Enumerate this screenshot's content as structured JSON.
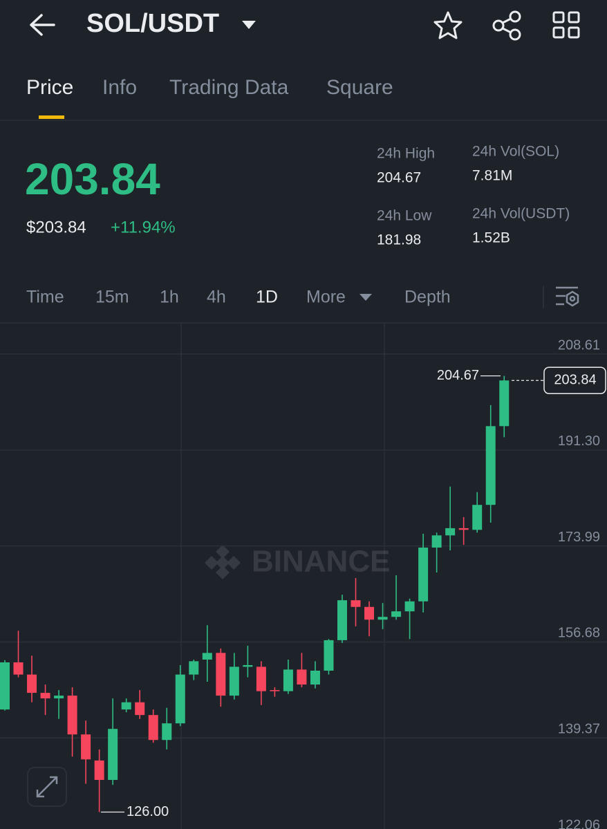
{
  "header": {
    "pair": "SOL/USDT"
  },
  "tabs": [
    "Price",
    "Info",
    "Trading Data",
    "Square"
  ],
  "price": {
    "last": "203.84",
    "fiat": "$203.84",
    "change": "+11.94%"
  },
  "stats": [
    {
      "label": "24h High",
      "value": "204.67"
    },
    {
      "label": "24h Vol(SOL)",
      "value": "7.81M"
    },
    {
      "label": "24h Low",
      "value": "181.98"
    },
    {
      "label": "24h Vol(USDT)",
      "value": "1.52B"
    }
  ],
  "intervals": [
    "Time",
    "15m",
    "1h",
    "4h",
    "1D",
    "More",
    "Depth"
  ],
  "chart_data": {
    "type": "candlestick",
    "watermark": "BINANCE",
    "up_color": "#2ebd85",
    "down_color": "#f6465d",
    "open": [
      144.5,
      153.0,
      150.8,
      147.5,
      146.5,
      147.0,
      140.0,
      135.3,
      131.8,
      144.5,
      145.8,
      143.5,
      139.0,
      142.0,
      150.8,
      153.5,
      154.7,
      147.0,
      152.2,
      152.2,
      148.0,
      147.8,
      151.7,
      149.0,
      151.5,
      157.0,
      164.2,
      163.0,
      160.7,
      161.2,
      162.2,
      164.0,
      173.7,
      175.9,
      177.2,
      176.9,
      181.4,
      195.6
    ],
    "high": [
      153.4,
      158.7,
      154.2,
      149.0,
      148.0,
      148.5,
      142.5,
      137.3,
      146.5,
      146.5,
      148.0,
      144.5,
      144.8,
      152.5,
      153.5,
      159.7,
      155.5,
      154.7,
      156.0,
      153.2,
      148.5,
      153.5,
      154.7,
      153.2,
      157.2,
      165.2,
      168.2,
      164.0,
      163.7,
      168.7,
      164.5,
      176.2,
      176.4,
      184.7,
      179.2,
      183.7,
      199.4,
      204.67
    ],
    "low": [
      144.3,
      150.3,
      145.8,
      143.5,
      142.8,
      136.0,
      131.1,
      126.0,
      130.9,
      144.0,
      142.8,
      138.5,
      137.3,
      141.5,
      149.8,
      149.5,
      145.0,
      146.3,
      150.3,
      145.3,
      146.8,
      147.3,
      148.5,
      148.3,
      150.8,
      156.5,
      159.5,
      157.7,
      159.0,
      160.7,
      157.2,
      162.0,
      169.2,
      173.2,
      174.2,
      176.4,
      178.2,
      193.6
    ],
    "close": [
      153.0,
      150.8,
      147.5,
      146.5,
      147.0,
      140.0,
      135.5,
      131.8,
      141.0,
      145.8,
      143.5,
      139.0,
      142.0,
      150.8,
      153.2,
      154.7,
      147.0,
      152.2,
      152.5,
      147.8,
      147.8,
      151.7,
      149.0,
      151.5,
      157.0,
      164.2,
      163.0,
      160.7,
      161.2,
      162.2,
      164.0,
      173.7,
      175.9,
      177.2,
      176.9,
      181.4,
      195.6,
      203.84
    ],
    "ylim": [
      122.06,
      214.22
    ],
    "yticks": [
      208.61,
      {
        "value": 191.3,
        "label": "191.30"
      },
      173.99,
      156.68,
      139.37,
      122.06
    ],
    "grid": true,
    "high_annotation": 204.67,
    "low_annotation": {
      "value": 126,
      "label": "126.00"
    },
    "last_price": 203.84
  }
}
